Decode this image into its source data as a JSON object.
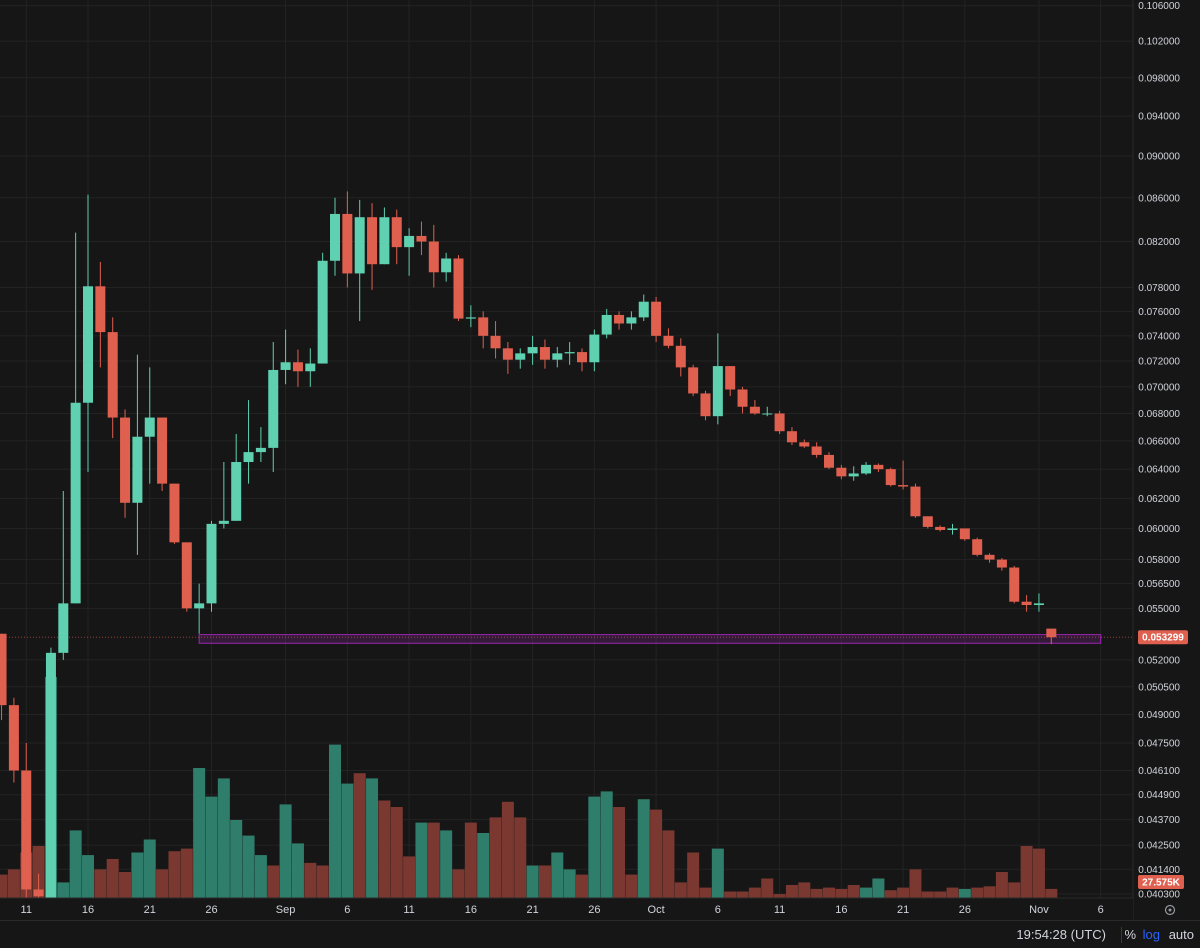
{
  "chart_data": {
    "type": "candlestick",
    "price_axis": {
      "scale": "log",
      "range": [
        0.0403,
        0.1062
      ],
      "ticks": [
        "0.106000",
        "0.102000",
        "0.098000",
        "0.094000",
        "0.090000",
        "0.086000",
        "0.082000",
        "0.078000",
        "0.076000",
        "0.074000",
        "0.072000",
        "0.070000",
        "0.068000",
        "0.066000",
        "0.064000",
        "0.062000",
        "0.060000",
        "0.058000",
        "0.056500",
        "0.055000",
        "0.052000",
        "0.050500",
        "0.049000",
        "0.047500",
        "0.046100",
        "0.044900",
        "0.043700",
        "0.042500",
        "0.041400",
        "0.040300"
      ]
    },
    "time_axis": {
      "labels": [
        {
          "text": "11",
          "day": -5
        },
        {
          "text": "16",
          "day": 0
        },
        {
          "text": "21",
          "day": 5
        },
        {
          "text": "26",
          "day": 10
        },
        {
          "text": "Sep",
          "day": 16
        },
        {
          "text": "6",
          "day": 21
        },
        {
          "text": "11",
          "day": 26
        },
        {
          "text": "16",
          "day": 31
        },
        {
          "text": "21",
          "day": 36
        },
        {
          "text": "26",
          "day": 41
        },
        {
          "text": "Oct",
          "day": 46
        },
        {
          "text": "6",
          "day": 51
        },
        {
          "text": "11",
          "day": 56
        },
        {
          "text": "16",
          "day": 61
        },
        {
          "text": "21",
          "day": 66
        },
        {
          "text": "26",
          "day": 71
        },
        {
          "text": "Nov",
          "day": 77
        },
        {
          "text": "6",
          "day": 82
        }
      ]
    },
    "last_price": {
      "value": 0.053299,
      "label": "0.053299"
    },
    "volume_label": "27.575K",
    "support_zone": {
      "start_day": 9,
      "end_day": 82,
      "low": 0.05295,
      "high": 0.05345
    },
    "colors": {
      "up": "#5fd0b0",
      "down": "#e06050",
      "vol_up": "#2f7e6c",
      "vol_down": "#7a3830",
      "zone": "#9c27b0"
    },
    "candles": [
      {
        "d": -7,
        "o": 0.0535,
        "h": 0.0535,
        "l": 0.0487,
        "c": 0.0495
      },
      {
        "d": -6,
        "o": 0.0495,
        "h": 0.0499,
        "l": 0.0455,
        "c": 0.0461
      },
      {
        "d": -5,
        "o": 0.0461,
        "h": 0.0475,
        "l": 0.0395,
        "c": 0.0405
      },
      {
        "d": -4,
        "o": 0.0405,
        "h": 0.0412,
        "l": 0.0398,
        "c": 0.0402
      },
      {
        "d": -3,
        "o": 0.04,
        "h": 0.0527,
        "l": 0.0398,
        "c": 0.0524
      },
      {
        "d": -2,
        "o": 0.0524,
        "h": 0.0625,
        "l": 0.052,
        "c": 0.0553
      },
      {
        "d": -1,
        "o": 0.0553,
        "h": 0.0828,
        "l": 0.0553,
        "c": 0.0688
      },
      {
        "d": 0,
        "o": 0.0688,
        "h": 0.0863,
        "l": 0.0638,
        "c": 0.0781
      },
      {
        "d": 1,
        "o": 0.0781,
        "h": 0.0802,
        "l": 0.0715,
        "c": 0.0743
      },
      {
        "d": 2,
        "o": 0.0743,
        "h": 0.0755,
        "l": 0.0662,
        "c": 0.0677
      },
      {
        "d": 3,
        "o": 0.0677,
        "h": 0.0683,
        "l": 0.0607,
        "c": 0.0617
      },
      {
        "d": 4,
        "o": 0.0617,
        "h": 0.0725,
        "l": 0.0583,
        "c": 0.0663
      },
      {
        "d": 5,
        "o": 0.0663,
        "h": 0.0715,
        "l": 0.063,
        "c": 0.0677
      },
      {
        "d": 6,
        "o": 0.0677,
        "h": 0.0677,
        "l": 0.0625,
        "c": 0.063
      },
      {
        "d": 7,
        "o": 0.063,
        "h": 0.063,
        "l": 0.059,
        "c": 0.0591
      },
      {
        "d": 8,
        "o": 0.0591,
        "h": 0.0591,
        "l": 0.0548,
        "c": 0.055
      },
      {
        "d": 9,
        "o": 0.055,
        "h": 0.0565,
        "l": 0.0535,
        "c": 0.0553
      },
      {
        "d": 10,
        "o": 0.0553,
        "h": 0.0605,
        "l": 0.0548,
        "c": 0.0603
      },
      {
        "d": 11,
        "o": 0.0603,
        "h": 0.0645,
        "l": 0.06,
        "c": 0.0605
      },
      {
        "d": 12,
        "o": 0.0605,
        "h": 0.0665,
        "l": 0.0605,
        "c": 0.0645
      },
      {
        "d": 13,
        "o": 0.0645,
        "h": 0.069,
        "l": 0.063,
        "c": 0.0652
      },
      {
        "d": 14,
        "o": 0.0652,
        "h": 0.067,
        "l": 0.0645,
        "c": 0.0655
      },
      {
        "d": 15,
        "o": 0.0655,
        "h": 0.0735,
        "l": 0.0638,
        "c": 0.0713
      },
      {
        "d": 16,
        "o": 0.0713,
        "h": 0.0745,
        "l": 0.0702,
        "c": 0.0719
      },
      {
        "d": 17,
        "o": 0.0719,
        "h": 0.0729,
        "l": 0.07,
        "c": 0.0712
      },
      {
        "d": 18,
        "o": 0.0712,
        "h": 0.073,
        "l": 0.07,
        "c": 0.0718
      },
      {
        "d": 19,
        "o": 0.0718,
        "h": 0.081,
        "l": 0.0718,
        "c": 0.0803
      },
      {
        "d": 20,
        "o": 0.0803,
        "h": 0.086,
        "l": 0.079,
        "c": 0.0845
      },
      {
        "d": 21,
        "o": 0.0845,
        "h": 0.0866,
        "l": 0.078,
        "c": 0.0792
      },
      {
        "d": 22,
        "o": 0.0792,
        "h": 0.0858,
        "l": 0.0752,
        "c": 0.0842
      },
      {
        "d": 23,
        "o": 0.0842,
        "h": 0.0855,
        "l": 0.0778,
        "c": 0.08
      },
      {
        "d": 24,
        "o": 0.08,
        "h": 0.0851,
        "l": 0.08,
        "c": 0.0842
      },
      {
        "d": 25,
        "o": 0.0842,
        "h": 0.0849,
        "l": 0.08,
        "c": 0.0815
      },
      {
        "d": 26,
        "o": 0.0815,
        "h": 0.0832,
        "l": 0.079,
        "c": 0.0825
      },
      {
        "d": 27,
        "o": 0.0825,
        "h": 0.0838,
        "l": 0.0808,
        "c": 0.082
      },
      {
        "d": 28,
        "o": 0.082,
        "h": 0.0835,
        "l": 0.078,
        "c": 0.0793
      },
      {
        "d": 29,
        "o": 0.0793,
        "h": 0.081,
        "l": 0.0785,
        "c": 0.0805
      },
      {
        "d": 30,
        "o": 0.0805,
        "h": 0.0808,
        "l": 0.0752,
        "c": 0.0754
      },
      {
        "d": 31,
        "o": 0.0754,
        "h": 0.0765,
        "l": 0.0747,
        "c": 0.0755
      },
      {
        "d": 32,
        "o": 0.0755,
        "h": 0.076,
        "l": 0.073,
        "c": 0.074
      },
      {
        "d": 33,
        "o": 0.074,
        "h": 0.0752,
        "l": 0.0722,
        "c": 0.073
      },
      {
        "d": 34,
        "o": 0.073,
        "h": 0.0735,
        "l": 0.071,
        "c": 0.0721
      },
      {
        "d": 35,
        "o": 0.0721,
        "h": 0.073,
        "l": 0.0714,
        "c": 0.0726
      },
      {
        "d": 36,
        "o": 0.0726,
        "h": 0.074,
        "l": 0.0717,
        "c": 0.0731
      },
      {
        "d": 37,
        "o": 0.0731,
        "h": 0.0737,
        "l": 0.0714,
        "c": 0.0721
      },
      {
        "d": 38,
        "o": 0.0721,
        "h": 0.0731,
        "l": 0.0715,
        "c": 0.0726
      },
      {
        "d": 39,
        "o": 0.0726,
        "h": 0.0735,
        "l": 0.0717,
        "c": 0.0727
      },
      {
        "d": 40,
        "o": 0.0727,
        "h": 0.073,
        "l": 0.0712,
        "c": 0.0719
      },
      {
        "d": 41,
        "o": 0.0719,
        "h": 0.0745,
        "l": 0.0712,
        "c": 0.0741
      },
      {
        "d": 42,
        "o": 0.0741,
        "h": 0.0762,
        "l": 0.0738,
        "c": 0.0757
      },
      {
        "d": 43,
        "o": 0.0757,
        "h": 0.076,
        "l": 0.0745,
        "c": 0.075
      },
      {
        "d": 44,
        "o": 0.075,
        "h": 0.076,
        "l": 0.0745,
        "c": 0.0755
      },
      {
        "d": 45,
        "o": 0.0755,
        "h": 0.0774,
        "l": 0.0752,
        "c": 0.0768
      },
      {
        "d": 46,
        "o": 0.0768,
        "h": 0.0772,
        "l": 0.0735,
        "c": 0.074
      },
      {
        "d": 47,
        "o": 0.074,
        "h": 0.0746,
        "l": 0.073,
        "c": 0.0732
      },
      {
        "d": 48,
        "o": 0.0732,
        "h": 0.0738,
        "l": 0.0708,
        "c": 0.0715
      },
      {
        "d": 49,
        "o": 0.0715,
        "h": 0.0717,
        "l": 0.0693,
        "c": 0.0695
      },
      {
        "d": 50,
        "o": 0.0695,
        "h": 0.0697,
        "l": 0.0675,
        "c": 0.0678
      },
      {
        "d": 51,
        "o": 0.0678,
        "h": 0.0742,
        "l": 0.0672,
        "c": 0.0716
      },
      {
        "d": 52,
        "o": 0.0716,
        "h": 0.0716,
        "l": 0.0693,
        "c": 0.0698
      },
      {
        "d": 53,
        "o": 0.0698,
        "h": 0.07,
        "l": 0.068,
        "c": 0.0685
      },
      {
        "d": 54,
        "o": 0.0685,
        "h": 0.069,
        "l": 0.0679,
        "c": 0.068
      },
      {
        "d": 55,
        "o": 0.068,
        "h": 0.0685,
        "l": 0.0678,
        "c": 0.068
      },
      {
        "d": 56,
        "o": 0.068,
        "h": 0.0682,
        "l": 0.0665,
        "c": 0.0667
      },
      {
        "d": 57,
        "o": 0.0667,
        "h": 0.067,
        "l": 0.0657,
        "c": 0.0659
      },
      {
        "d": 58,
        "o": 0.0659,
        "h": 0.0661,
        "l": 0.0655,
        "c": 0.0656
      },
      {
        "d": 59,
        "o": 0.0656,
        "h": 0.0659,
        "l": 0.0648,
        "c": 0.065
      },
      {
        "d": 60,
        "o": 0.065,
        "h": 0.0652,
        "l": 0.064,
        "c": 0.0641
      },
      {
        "d": 61,
        "o": 0.0641,
        "h": 0.0643,
        "l": 0.0633,
        "c": 0.0635
      },
      {
        "d": 62,
        "o": 0.0635,
        "h": 0.0642,
        "l": 0.0632,
        "c": 0.0637
      },
      {
        "d": 63,
        "o": 0.0637,
        "h": 0.0645,
        "l": 0.0636,
        "c": 0.0643
      },
      {
        "d": 64,
        "o": 0.0643,
        "h": 0.0644,
        "l": 0.0638,
        "c": 0.064
      },
      {
        "d": 65,
        "o": 0.064,
        "h": 0.0641,
        "l": 0.0628,
        "c": 0.0629
      },
      {
        "d": 66,
        "o": 0.0629,
        "h": 0.0646,
        "l": 0.0626,
        "c": 0.0628
      },
      {
        "d": 67,
        "o": 0.0628,
        "h": 0.063,
        "l": 0.0607,
        "c": 0.0608
      },
      {
        "d": 68,
        "o": 0.0608,
        "h": 0.0608,
        "l": 0.06,
        "c": 0.0601
      },
      {
        "d": 69,
        "o": 0.0601,
        "h": 0.0602,
        "l": 0.0598,
        "c": 0.0599
      },
      {
        "d": 70,
        "o": 0.0599,
        "h": 0.0603,
        "l": 0.0596,
        "c": 0.06
      },
      {
        "d": 71,
        "o": 0.06,
        "h": 0.06,
        "l": 0.0592,
        "c": 0.0593
      },
      {
        "d": 72,
        "o": 0.0593,
        "h": 0.0594,
        "l": 0.0582,
        "c": 0.0583
      },
      {
        "d": 73,
        "o": 0.0583,
        "h": 0.0584,
        "l": 0.0578,
        "c": 0.058
      },
      {
        "d": 74,
        "o": 0.058,
        "h": 0.0581,
        "l": 0.0573,
        "c": 0.0575
      },
      {
        "d": 75,
        "o": 0.0575,
        "h": 0.0576,
        "l": 0.0553,
        "c": 0.0554
      },
      {
        "d": 76,
        "o": 0.0554,
        "h": 0.0558,
        "l": 0.0548,
        "c": 0.0552
      },
      {
        "d": 77,
        "o": 0.0552,
        "h": 0.0559,
        "l": 0.0548,
        "c": 0.0553
      },
      {
        "d": 78,
        "o": 0.0538,
        "h": 0.0538,
        "l": 0.0529,
        "c": 0.0533
      }
    ],
    "volume": [
      {
        "d": -7,
        "v": 0.18,
        "up": false
      },
      {
        "d": -6,
        "v": 0.22,
        "up": false
      },
      {
        "d": -5,
        "v": 0.35,
        "up": false
      },
      {
        "d": -4,
        "v": 0.4,
        "up": false
      },
      {
        "d": -3,
        "v": 1.7,
        "up": true
      },
      {
        "d": -2,
        "v": 0.12,
        "up": true
      },
      {
        "d": -1,
        "v": 0.52,
        "up": true
      },
      {
        "d": 0,
        "v": 0.33,
        "up": true
      },
      {
        "d": 1,
        "v": 0.22,
        "up": false
      },
      {
        "d": 2,
        "v": 0.3,
        "up": false
      },
      {
        "d": 3,
        "v": 0.2,
        "up": false
      },
      {
        "d": 4,
        "v": 0.35,
        "up": true
      },
      {
        "d": 5,
        "v": 0.45,
        "up": true
      },
      {
        "d": 6,
        "v": 0.22,
        "up": false
      },
      {
        "d": 7,
        "v": 0.36,
        "up": false
      },
      {
        "d": 8,
        "v": 0.38,
        "up": false
      },
      {
        "d": 9,
        "v": 1.0,
        "up": true
      },
      {
        "d": 10,
        "v": 0.78,
        "up": true
      },
      {
        "d": 11,
        "v": 0.92,
        "up": true
      },
      {
        "d": 12,
        "v": 0.6,
        "up": true
      },
      {
        "d": 13,
        "v": 0.48,
        "up": true
      },
      {
        "d": 14,
        "v": 0.33,
        "up": true
      },
      {
        "d": 15,
        "v": 0.25,
        "up": false
      },
      {
        "d": 16,
        "v": 0.72,
        "up": true
      },
      {
        "d": 17,
        "v": 0.42,
        "up": true
      },
      {
        "d": 18,
        "v": 0.27,
        "up": false
      },
      {
        "d": 19,
        "v": 0.25,
        "up": false
      },
      {
        "d": 20,
        "v": 1.18,
        "up": true
      },
      {
        "d": 21,
        "v": 0.88,
        "up": true
      },
      {
        "d": 22,
        "v": 0.96,
        "up": false
      },
      {
        "d": 23,
        "v": 0.92,
        "up": true
      },
      {
        "d": 24,
        "v": 0.75,
        "up": false
      },
      {
        "d": 25,
        "v": 0.7,
        "up": false
      },
      {
        "d": 26,
        "v": 0.32,
        "up": false
      },
      {
        "d": 27,
        "v": 0.58,
        "up": true
      },
      {
        "d": 28,
        "v": 0.58,
        "up": false
      },
      {
        "d": 29,
        "v": 0.52,
        "up": true
      },
      {
        "d": 30,
        "v": 0.22,
        "up": false
      },
      {
        "d": 31,
        "v": 0.58,
        "up": false
      },
      {
        "d": 32,
        "v": 0.5,
        "up": true
      },
      {
        "d": 33,
        "v": 0.62,
        "up": false
      },
      {
        "d": 34,
        "v": 0.74,
        "up": false
      },
      {
        "d": 35,
        "v": 0.62,
        "up": false
      },
      {
        "d": 36,
        "v": 0.25,
        "up": true
      },
      {
        "d": 37,
        "v": 0.25,
        "up": false
      },
      {
        "d": 38,
        "v": 0.35,
        "up": true
      },
      {
        "d": 39,
        "v": 0.22,
        "up": true
      },
      {
        "d": 40,
        "v": 0.18,
        "up": false
      },
      {
        "d": 41,
        "v": 0.78,
        "up": true
      },
      {
        "d": 42,
        "v": 0.82,
        "up": true
      },
      {
        "d": 43,
        "v": 0.7,
        "up": false
      },
      {
        "d": 44,
        "v": 0.18,
        "up": false
      },
      {
        "d": 45,
        "v": 0.76,
        "up": true
      },
      {
        "d": 46,
        "v": 0.68,
        "up": false
      },
      {
        "d": 47,
        "v": 0.52,
        "up": false
      },
      {
        "d": 48,
        "v": 0.12,
        "up": false
      },
      {
        "d": 49,
        "v": 0.35,
        "up": false
      },
      {
        "d": 50,
        "v": 0.08,
        "up": false
      },
      {
        "d": 51,
        "v": 0.38,
        "up": true
      },
      {
        "d": 52,
        "v": 0.05,
        "up": false
      },
      {
        "d": 53,
        "v": 0.05,
        "up": false
      },
      {
        "d": 54,
        "v": 0.08,
        "up": false
      },
      {
        "d": 55,
        "v": 0.15,
        "up": false
      },
      {
        "d": 56,
        "v": 0.03,
        "up": false
      },
      {
        "d": 57,
        "v": 0.1,
        "up": false
      },
      {
        "d": 58,
        "v": 0.12,
        "up": false
      },
      {
        "d": 59,
        "v": 0.07,
        "up": false
      },
      {
        "d": 60,
        "v": 0.08,
        "up": false
      },
      {
        "d": 61,
        "v": 0.07,
        "up": false
      },
      {
        "d": 62,
        "v": 0.1,
        "up": false
      },
      {
        "d": 63,
        "v": 0.08,
        "up": true
      },
      {
        "d": 64,
        "v": 0.15,
        "up": true
      },
      {
        "d": 65,
        "v": 0.06,
        "up": false
      },
      {
        "d": 66,
        "v": 0.08,
        "up": false
      },
      {
        "d": 67,
        "v": 0.22,
        "up": false
      },
      {
        "d": 68,
        "v": 0.05,
        "up": false
      },
      {
        "d": 69,
        "v": 0.05,
        "up": false
      },
      {
        "d": 70,
        "v": 0.08,
        "up": false
      },
      {
        "d": 71,
        "v": 0.07,
        "up": true
      },
      {
        "d": 72,
        "v": 0.08,
        "up": false
      },
      {
        "d": 73,
        "v": 0.09,
        "up": false
      },
      {
        "d": 74,
        "v": 0.2,
        "up": false
      },
      {
        "d": 75,
        "v": 0.12,
        "up": false
      },
      {
        "d": 76,
        "v": 0.4,
        "up": false
      },
      {
        "d": 77,
        "v": 0.38,
        "up": false
      },
      {
        "d": 78,
        "v": 0.07,
        "up": false
      }
    ]
  },
  "status_bar": {
    "clock": "19:54:28 (UTC)",
    "percent": "%",
    "log": "log",
    "auto": "auto"
  }
}
